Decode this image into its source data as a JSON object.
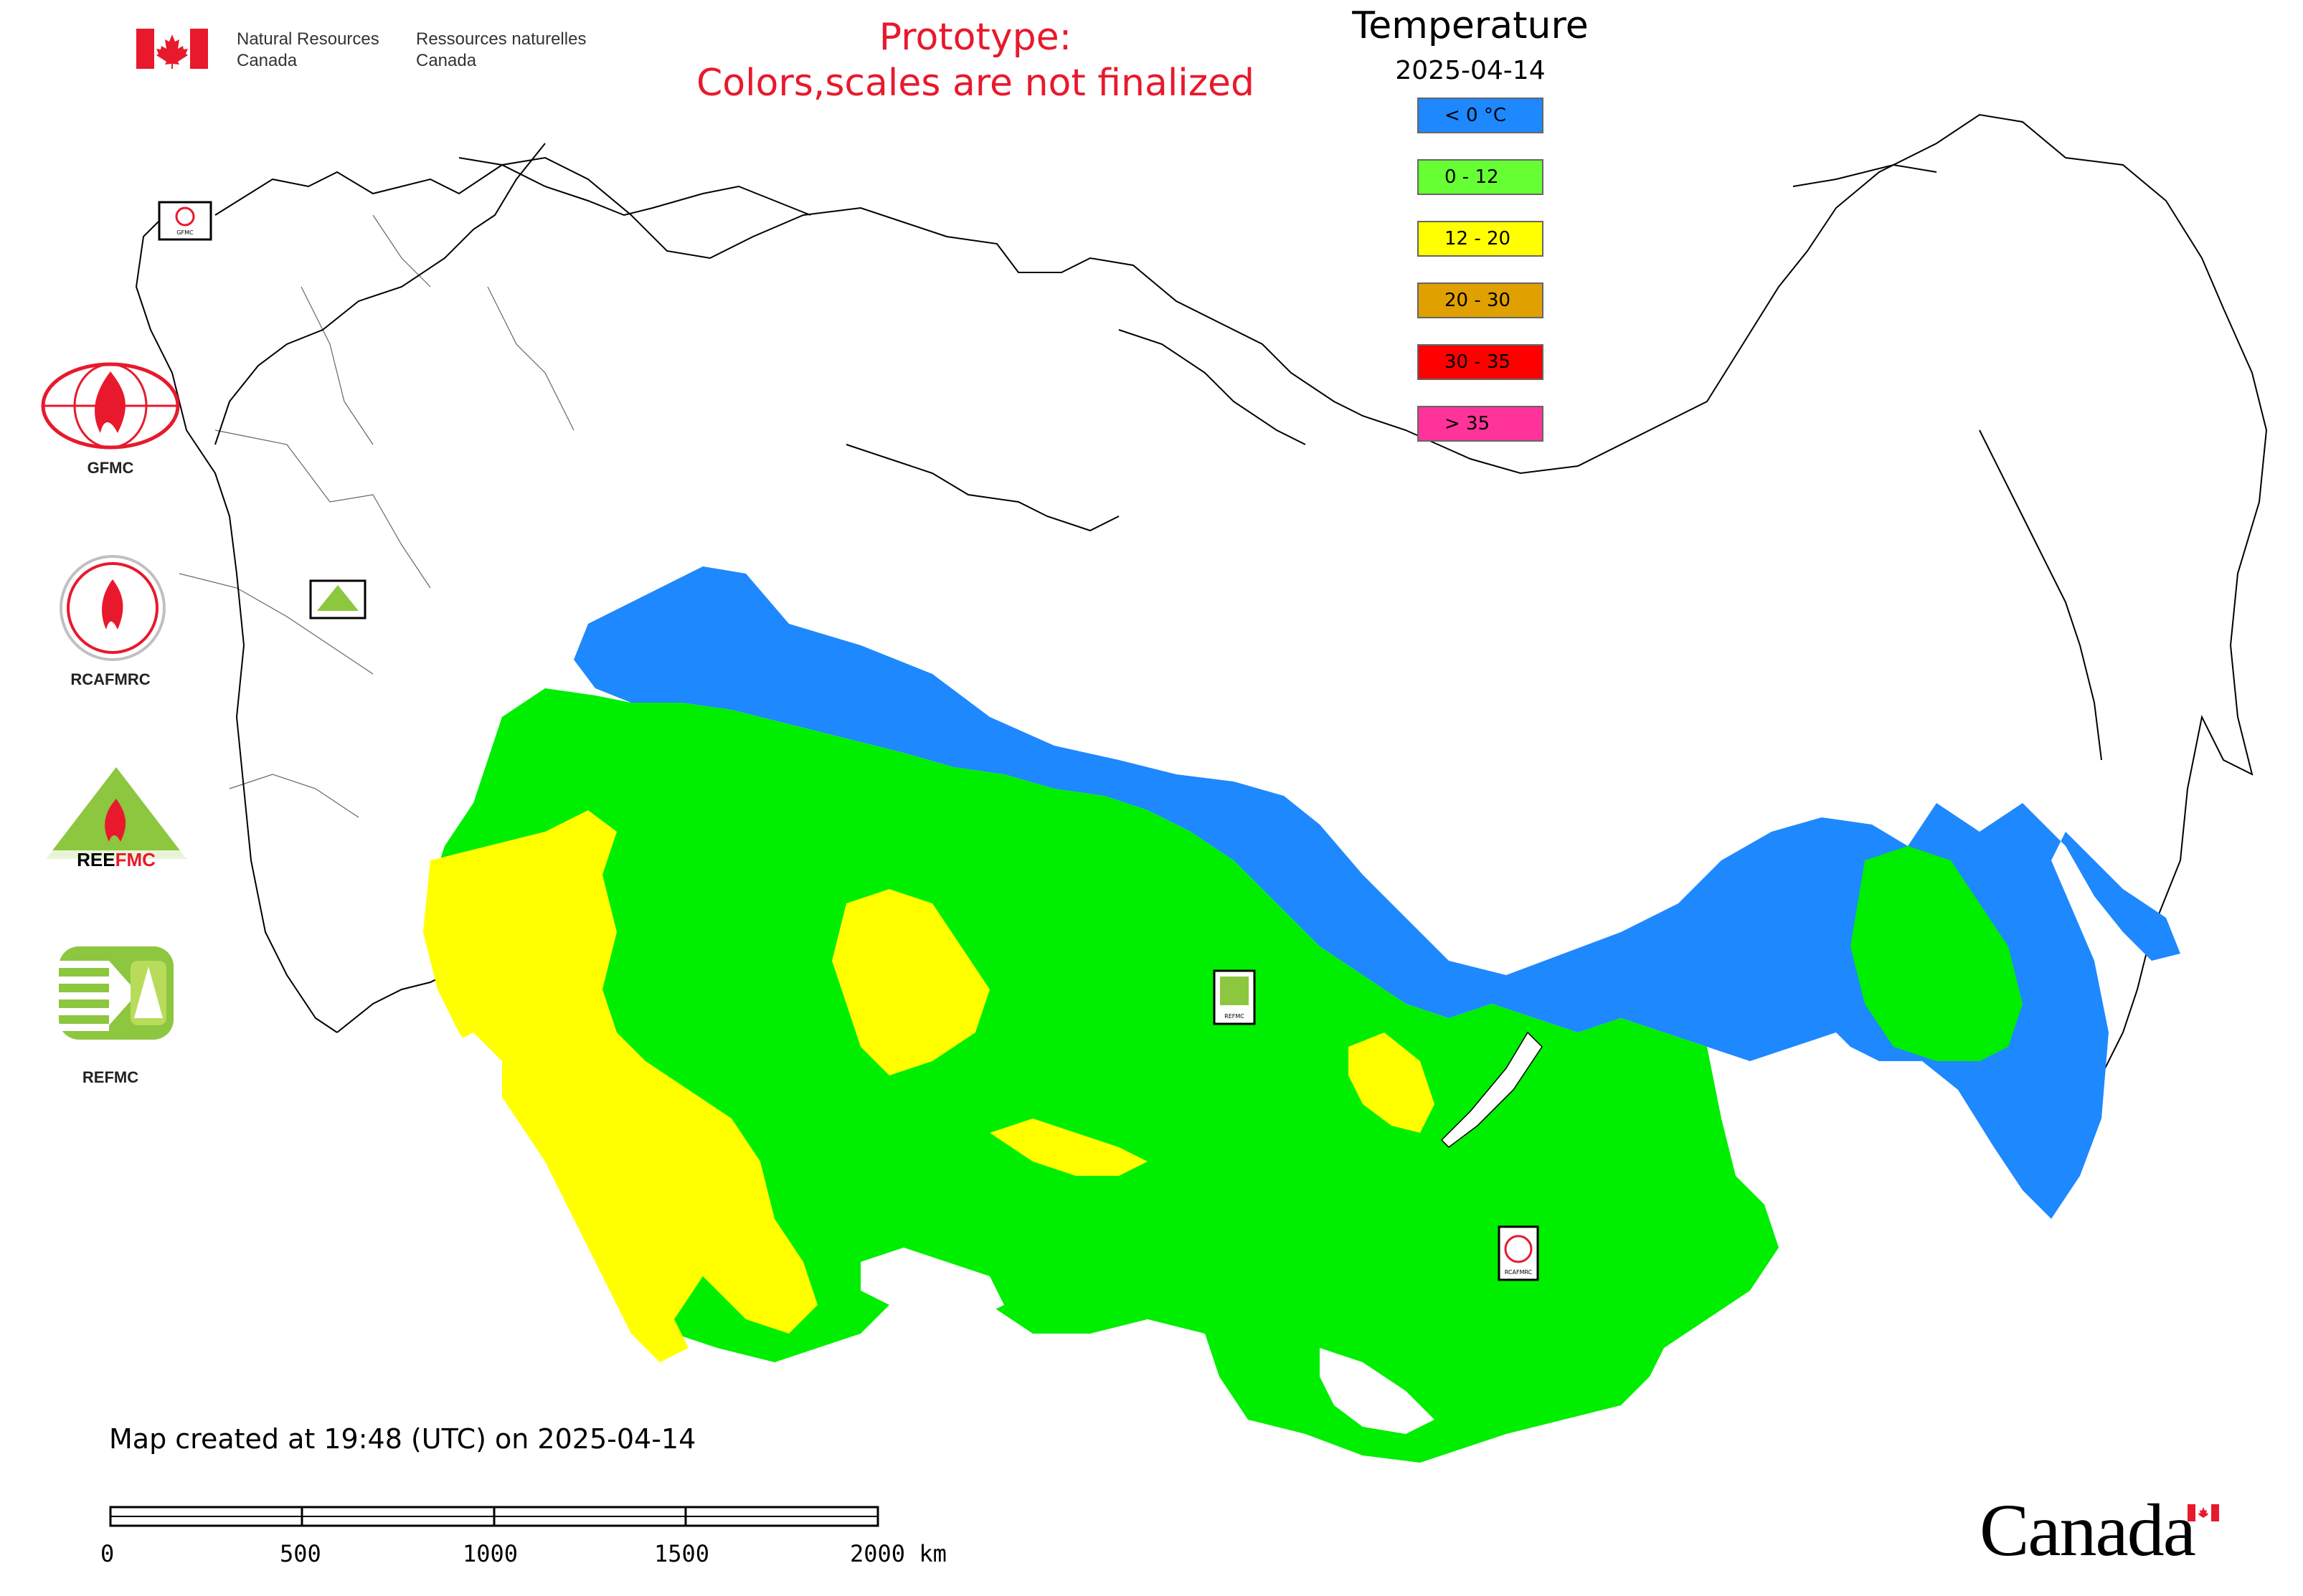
{
  "header": {
    "org_en_line1": "Natural Resources",
    "org_en_line2": "Canada",
    "org_fr_line1": "Ressources naturelles",
    "org_fr_line2": "Canada",
    "prototype_line1": "Prototype:",
    "prototype_line2": "Colors,scales are not finalized",
    "prototype_color": "#e8192c"
  },
  "legend": {
    "title": "Temperature",
    "date": "2025-04-14",
    "classes": [
      {
        "label": "< 0 °C",
        "color": "#1e88ff"
      },
      {
        "label": "0 - 12",
        "color": "#66ff33"
      },
      {
        "label": "12 - 20",
        "color": "#ffff00"
      },
      {
        "label": "20 - 30",
        "color": "#e0a000"
      },
      {
        "label": "30 - 35",
        "color": "#ff0000"
      },
      {
        "label": "> 35",
        "color": "#ff3399"
      }
    ]
  },
  "logos": [
    {
      "name": "GFMC",
      "label": "GFMC"
    },
    {
      "name": "RCAFMRC",
      "label": "RCAFMRC"
    },
    {
      "name": "REEFMC",
      "label": ""
    },
    {
      "name": "REFMC",
      "label": "REFMC"
    }
  ],
  "map_markers": {
    "gfmc_small": "GFMC",
    "refmc_small": "REFMC",
    "rcafmrc_small": "RCAFMRC"
  },
  "footer": {
    "created_text": "Map created at 19:48 (UTC) on 2025-04-14",
    "scale_labels": [
      "0",
      "500",
      "1000",
      "1500",
      "2000 km"
    ],
    "wordmark": "Canada"
  }
}
